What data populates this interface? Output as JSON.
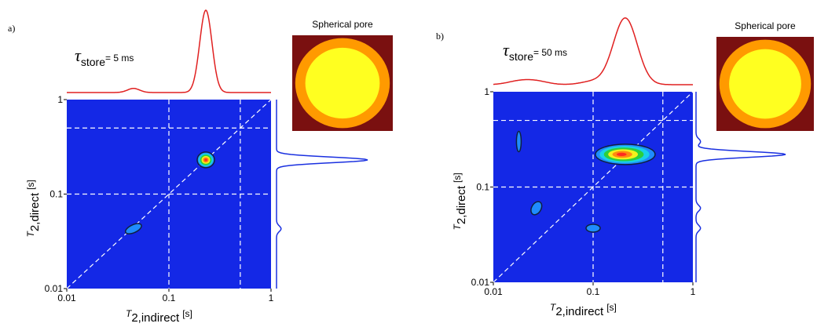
{
  "chart_data": [
    {
      "type": "contour",
      "panel_label": "a)",
      "inset_title": "Spherical pore",
      "annotation": {
        "symbol": "τ",
        "subscript": "store",
        "text": "= 5 ms"
      },
      "x_label": {
        "symbol": "T",
        "subscript": "2,indirect",
        "unit": "[s]"
      },
      "y_label": {
        "symbol": "T",
        "subscript": "2,direct",
        "unit": "[s]"
      },
      "log_scale": true,
      "xlim": [
        0.01,
        1
      ],
      "ylim": [
        0.01,
        1
      ],
      "xticks": [
        0.01,
        0.1,
        1
      ],
      "yticks": [
        0.01,
        0.1,
        1
      ],
      "guides": [
        0.1,
        0.5
      ],
      "peaks": {
        "x": [
          0.23,
          0.045
        ],
        "y": [
          0.23,
          0.043
        ]
      },
      "color": "#1428e6"
    },
    {
      "type": "contour",
      "panel_label": "b)",
      "inset_title": "Spherical pore",
      "annotation": {
        "symbol": "τ",
        "subscript": "store",
        "text": "= 50 ms"
      },
      "x_label": {
        "symbol": "T",
        "subscript": "2,indirect",
        "unit": "[s]"
      },
      "y_label": {
        "symbol": "T",
        "subscript": "2,direct",
        "unit": "[s]"
      },
      "log_scale": true,
      "xlim": [
        0.01,
        1
      ],
      "ylim": [
        0.01,
        1
      ],
      "xticks": [
        0.01,
        0.1,
        1
      ],
      "yticks": [
        0.01,
        0.1,
        1
      ],
      "guides": [
        0.1,
        0.5
      ],
      "peaks": {
        "x": [
          0.21,
          0.018,
          0.027,
          0.1
        ],
        "y": [
          0.22,
          0.3,
          0.06,
          0.037
        ]
      },
      "color": "#1428e6"
    }
  ]
}
